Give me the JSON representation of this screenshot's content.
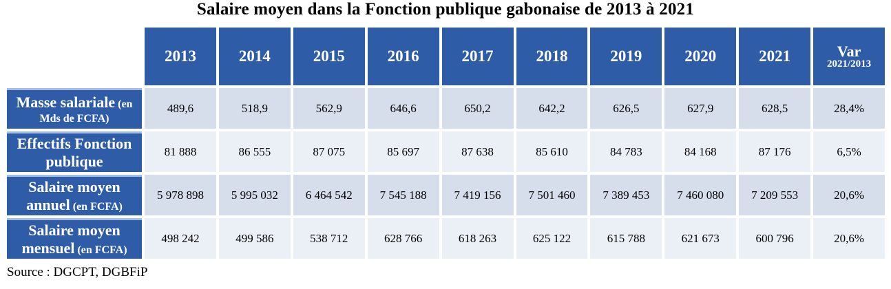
{
  "title": "Salaire moyen dans la Fonction publique gabonaise de 2013 à 2021",
  "source": "Source : DGCPT, DGBFiP",
  "colors": {
    "header_blue": "#2E5CA6",
    "label_top_border": "#A3BCE5",
    "row_odd_fill": "#D6DEEC",
    "row_even_fill": "#EBF0F7",
    "header_text": "#FFFFFF",
    "body_text": "#000000"
  },
  "table": {
    "year_columns": [
      "2013",
      "2014",
      "2015",
      "2016",
      "2017",
      "2018",
      "2019",
      "2020",
      "2021"
    ],
    "var_column": {
      "line1": "Var",
      "line2": "2021/2013"
    },
    "rows": [
      {
        "label": "Masse salariale",
        "sublabel": "(en Mds de FCFA)",
        "values": [
          "489,6",
          "518,9",
          "562,9",
          "646,6",
          "650,2",
          "642,2",
          "626,5",
          "627,9",
          "628,5"
        ],
        "var": "28,4%"
      },
      {
        "label": "Effectifs Fonction publique",
        "sublabel": "",
        "values": [
          "81 888",
          "86 555",
          "87 075",
          "85 697",
          "87 638",
          "85 610",
          "84 783",
          "84 168",
          "87 176"
        ],
        "var": "6,5%"
      },
      {
        "label": "Salaire moyen annuel",
        "sublabel": "(en FCFA)",
        "values": [
          "5 978 898",
          "5 995 032",
          "6 464 542",
          "7 545 188",
          "7 419 156",
          "7 501 460",
          "7 389 453",
          "7 460 080",
          "7 209 553"
        ],
        "var": "20,6%"
      },
      {
        "label": "Salaire moyen mensuel",
        "sublabel": "(en FCFA)",
        "values": [
          "498 242",
          "499 586",
          "538 712",
          "628 766",
          "618 263",
          "625 122",
          "615 788",
          "621 673",
          "600 796"
        ],
        "var": "20,6%"
      }
    ]
  },
  "chart_data": {
    "type": "table",
    "title": "Salaire moyen dans la Fonction publique gabonaise de 2013 à 2021",
    "categories": [
      "2013",
      "2014",
      "2015",
      "2016",
      "2017",
      "2018",
      "2019",
      "2020",
      "2021"
    ],
    "series": [
      {
        "name": "Masse salariale (en Mds de FCFA)",
        "values": [
          489.6,
          518.9,
          562.9,
          646.6,
          650.2,
          642.2,
          626.5,
          627.9,
          628.5
        ],
        "var_2021_2013": "28,4%"
      },
      {
        "name": "Effectifs Fonction publique",
        "values": [
          81888,
          86555,
          87075,
          85697,
          87638,
          85610,
          84783,
          84168,
          87176
        ],
        "var_2021_2013": "6,5%"
      },
      {
        "name": "Salaire moyen annuel (en FCFA)",
        "values": [
          5978898,
          5995032,
          6464542,
          7545188,
          7419156,
          7501460,
          7389453,
          7460080,
          7209553
        ],
        "var_2021_2013": "20,6%"
      },
      {
        "name": "Salaire moyen mensuel (en FCFA)",
        "values": [
          498242,
          499586,
          538712,
          628766,
          618263,
          625122,
          615788,
          621673,
          600796
        ],
        "var_2021_2013": "20,6%"
      }
    ],
    "source": "Source : DGCPT, DGBFiP"
  }
}
